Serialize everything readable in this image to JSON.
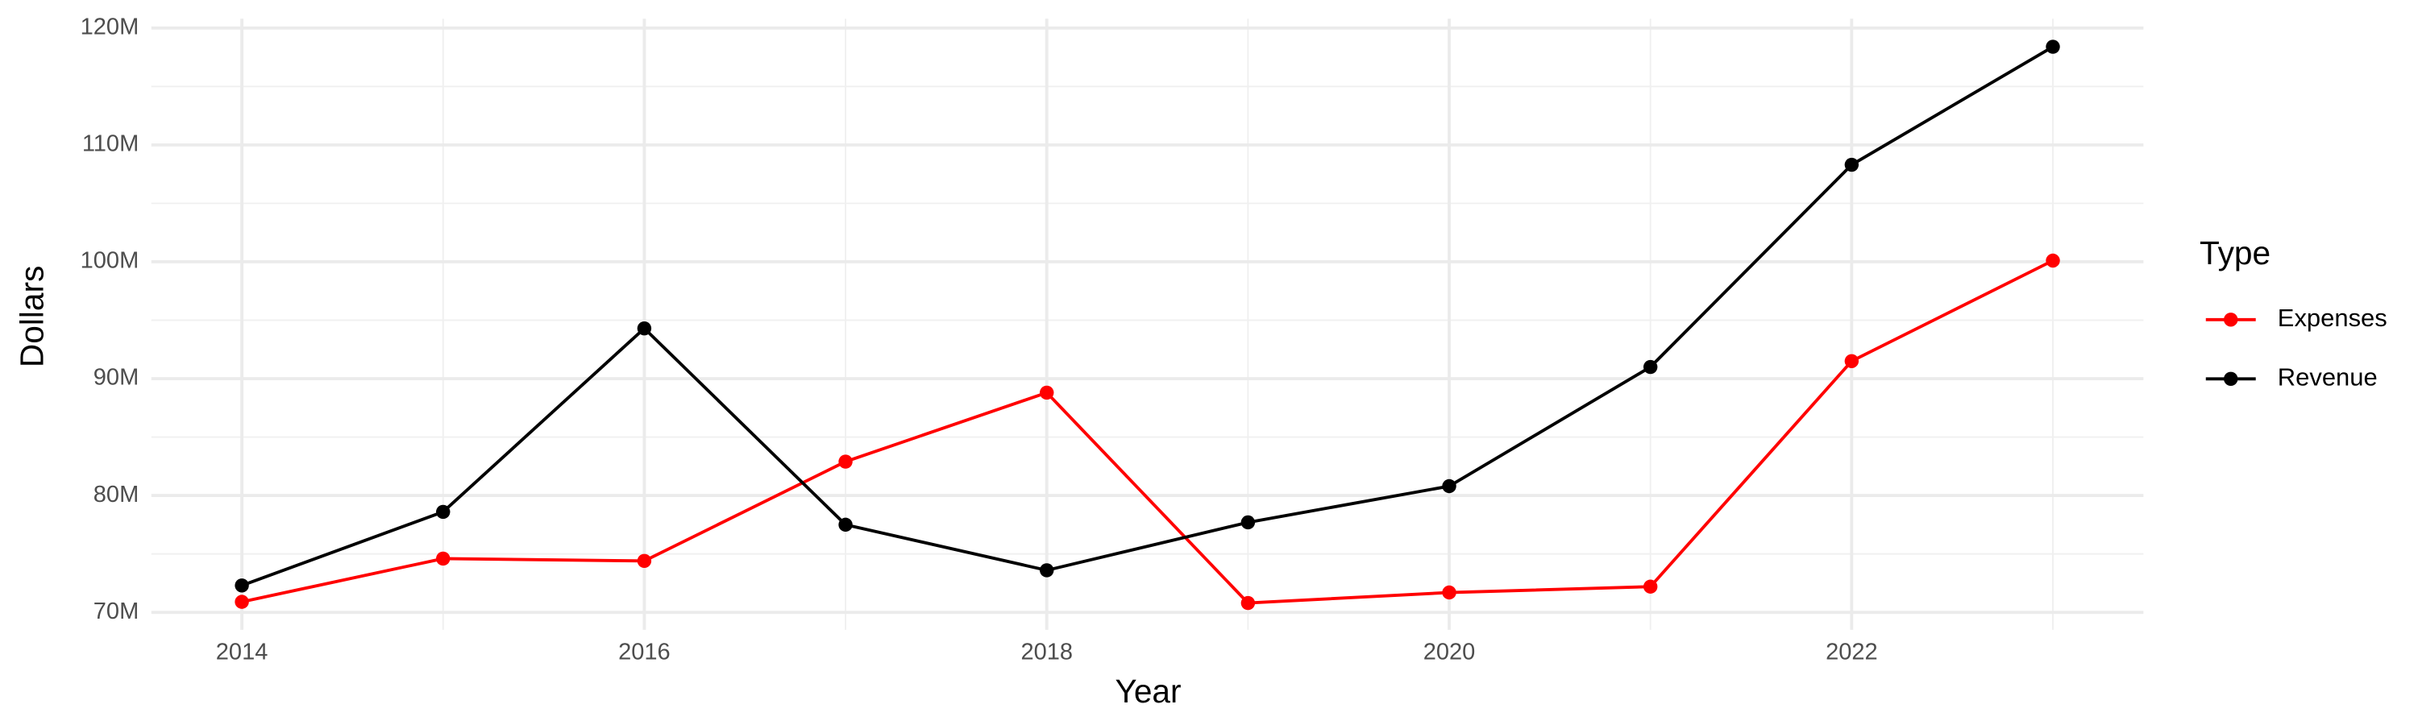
{
  "chart_data": {
    "type": "line",
    "x_label": "Year",
    "y_label": "Dollars",
    "x": [
      2014,
      2015,
      2016,
      2017,
      2018,
      2019,
      2020,
      2021,
      2022,
      2023
    ],
    "series": [
      {
        "name": "Expenses",
        "color": "#ff0000",
        "values": [
          70900000,
          74600000,
          74400000,
          82900000,
          88800000,
          70800000,
          71700000,
          72200000,
          91500000,
          100100000
        ]
      },
      {
        "name": "Revenue",
        "color": "#000000",
        "values": [
          72300000,
          78600000,
          94300000,
          77500000,
          73600000,
          77700000,
          80800000,
          91000000,
          108300000,
          118400000
        ]
      }
    ],
    "xlim": [
      2013.55,
      2023.45
    ],
    "ylim": [
      68500000,
      120800000
    ],
    "xticks": [
      2014,
      2016,
      2018,
      2020,
      2022
    ],
    "yticks": [
      {
        "value": 70000000,
        "label": "70M"
      },
      {
        "value": 80000000,
        "label": "80M"
      },
      {
        "value": 90000000,
        "label": "90M"
      },
      {
        "value": 100000000,
        "label": "100M"
      },
      {
        "value": 110000000,
        "label": "110M"
      },
      {
        "value": 120000000,
        "label": "120M"
      }
    ],
    "grid": true,
    "legend_title": "Type",
    "legend_position": "right"
  }
}
